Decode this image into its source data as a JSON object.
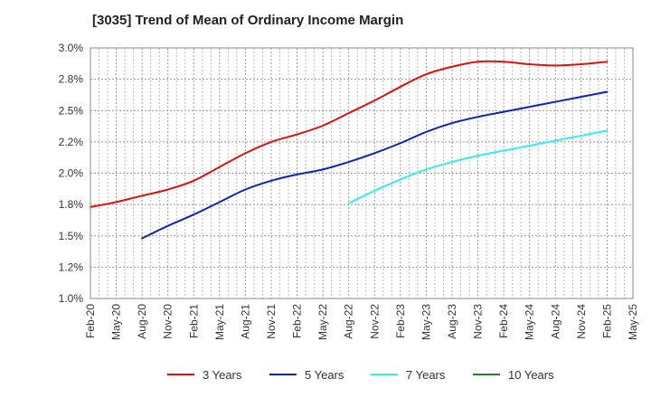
{
  "chart_data": {
    "type": "line",
    "title": "[3035]  Trend of Mean of Ordinary Income Margin",
    "xlabel": "",
    "ylabel": "",
    "x_ticks": [
      "Feb-20",
      "May-20",
      "Aug-20",
      "Nov-20",
      "Feb-21",
      "May-21",
      "Aug-21",
      "Nov-21",
      "Feb-22",
      "May-22",
      "Aug-22",
      "Nov-22",
      "Feb-23",
      "May-23",
      "Aug-23",
      "Nov-23",
      "Feb-24",
      "May-24",
      "Aug-24",
      "Nov-24",
      "Feb-25",
      "May-25"
    ],
    "y_ticks": [
      "1.0%",
      "1.2%",
      "1.5%",
      "1.8%",
      "2.0%",
      "2.2%",
      "2.5%",
      "2.8%",
      "3.0%"
    ],
    "ylim": [
      1.0,
      3.0
    ],
    "grid": "dotted",
    "legend_position": "bottom",
    "series": [
      {
        "name": "3 Years",
        "color": "#dd1111",
        "x": [
          "Feb-20",
          "May-20",
          "Aug-20",
          "Nov-20",
          "Feb-21",
          "May-21",
          "Aug-21",
          "Nov-21",
          "Feb-22",
          "May-22",
          "Aug-22",
          "Nov-22",
          "Feb-23",
          "May-23",
          "Aug-23",
          "Nov-23",
          "Feb-24",
          "May-24",
          "Aug-24",
          "Nov-24",
          "Feb-25"
        ],
        "values": [
          1.73,
          1.77,
          1.82,
          1.87,
          1.94,
          2.05,
          2.16,
          2.25,
          2.31,
          2.38,
          2.48,
          2.58,
          2.69,
          2.79,
          2.85,
          2.89,
          2.89,
          2.87,
          2.86,
          2.87,
          2.89
        ]
      },
      {
        "name": "5 Years",
        "color": "#1122bb",
        "x": [
          "Aug-20",
          "Nov-20",
          "Feb-21",
          "May-21",
          "Aug-21",
          "Nov-21",
          "Feb-22",
          "May-22",
          "Aug-22",
          "Nov-22",
          "Feb-23",
          "May-23",
          "Aug-23",
          "Nov-23",
          "Feb-24",
          "May-24",
          "Aug-24",
          "Nov-24",
          "Feb-25"
        ],
        "values": [
          1.48,
          1.58,
          1.67,
          1.77,
          1.87,
          1.94,
          1.99,
          2.03,
          2.09,
          2.16,
          2.24,
          2.33,
          2.4,
          2.45,
          2.49,
          2.53,
          2.57,
          2.61,
          2.65
        ]
      },
      {
        "name": "7 Years",
        "color": "#33eeee",
        "x": [
          "Aug-22",
          "Nov-22",
          "Feb-23",
          "May-23",
          "Aug-23",
          "Nov-23",
          "Feb-24",
          "May-24",
          "Aug-24",
          "Nov-24",
          "Feb-25"
        ],
        "values": [
          1.76,
          1.86,
          1.95,
          2.03,
          2.09,
          2.14,
          2.18,
          2.22,
          2.26,
          2.3,
          2.34
        ]
      },
      {
        "name": "10 Years",
        "color": "#228822",
        "x": [],
        "values": []
      }
    ]
  }
}
